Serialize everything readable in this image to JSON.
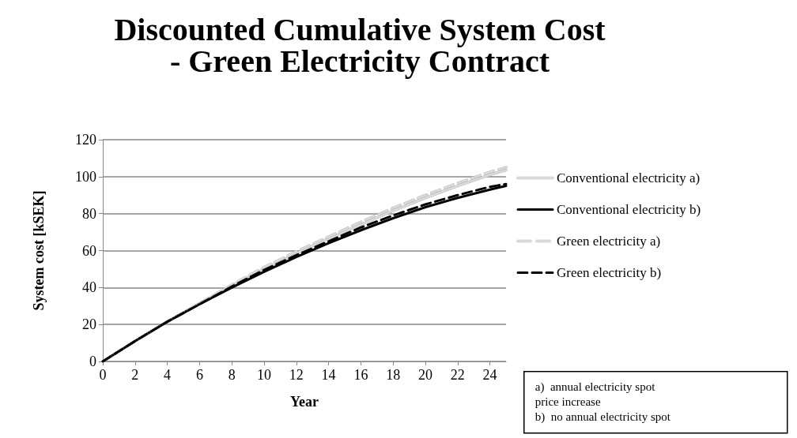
{
  "chart_data": {
    "type": "line",
    "title": "Discounted Cumulative System Cost\n- Green Electricity Contract",
    "xlabel": "Year",
    "ylabel": "System cost [kSEK]",
    "xlim": [
      0,
      25
    ],
    "xticks": [
      0,
      2,
      4,
      6,
      8,
      10,
      12,
      14,
      16,
      18,
      20,
      22,
      24
    ],
    "ylim": [
      0,
      120
    ],
    "yticks": [
      0,
      20,
      40,
      60,
      80,
      100,
      120
    ],
    "grid": "y",
    "legend": "right",
    "marker": "none",
    "annotations": [
      "a)  annual electricity spot price increase",
      "b)  no annual electricity spot"
    ],
    "series": [
      {
        "name": "Conventional electricity a)",
        "color": "#d9d9d9",
        "line_style": "solid",
        "x": [
          0,
          2,
          4,
          6,
          8,
          10,
          12,
          14,
          16,
          18,
          20,
          22,
          24,
          25
        ],
        "values": [
          0,
          11,
          21.5,
          31.5,
          41,
          50,
          58.5,
          66.5,
          74,
          81.5,
          88.5,
          95,
          101,
          103.5
        ]
      },
      {
        "name": "Conventional electricity b)",
        "color": "#000000",
        "line_style": "solid",
        "x": [
          0,
          2,
          4,
          6,
          8,
          10,
          12,
          14,
          16,
          18,
          20,
          22,
          24,
          25
        ],
        "values": [
          0,
          11,
          21.5,
          31,
          40,
          48.5,
          56.5,
          64,
          71,
          77.5,
          83.5,
          88.5,
          93,
          95
        ]
      },
      {
        "name": "Green electricity a)",
        "color": "#d9d9d9",
        "line_style": "dashed",
        "x": [
          0,
          2,
          4,
          6,
          8,
          10,
          12,
          14,
          16,
          18,
          20,
          22,
          24,
          25
        ],
        "values": [
          0,
          11,
          21.5,
          31.5,
          41.5,
          51,
          59.5,
          67.5,
          75.5,
          83,
          90,
          96.5,
          102.5,
          105
        ]
      },
      {
        "name": "Green electricity b)",
        "color": "#000000",
        "line_style": "dashed",
        "x": [
          0,
          2,
          4,
          6,
          8,
          10,
          12,
          14,
          16,
          18,
          20,
          22,
          24,
          25
        ],
        "values": [
          0,
          11,
          21.5,
          31,
          40.5,
          49.5,
          57.5,
          65,
          72.5,
          79,
          85,
          90,
          94.5,
          96
        ]
      }
    ]
  }
}
